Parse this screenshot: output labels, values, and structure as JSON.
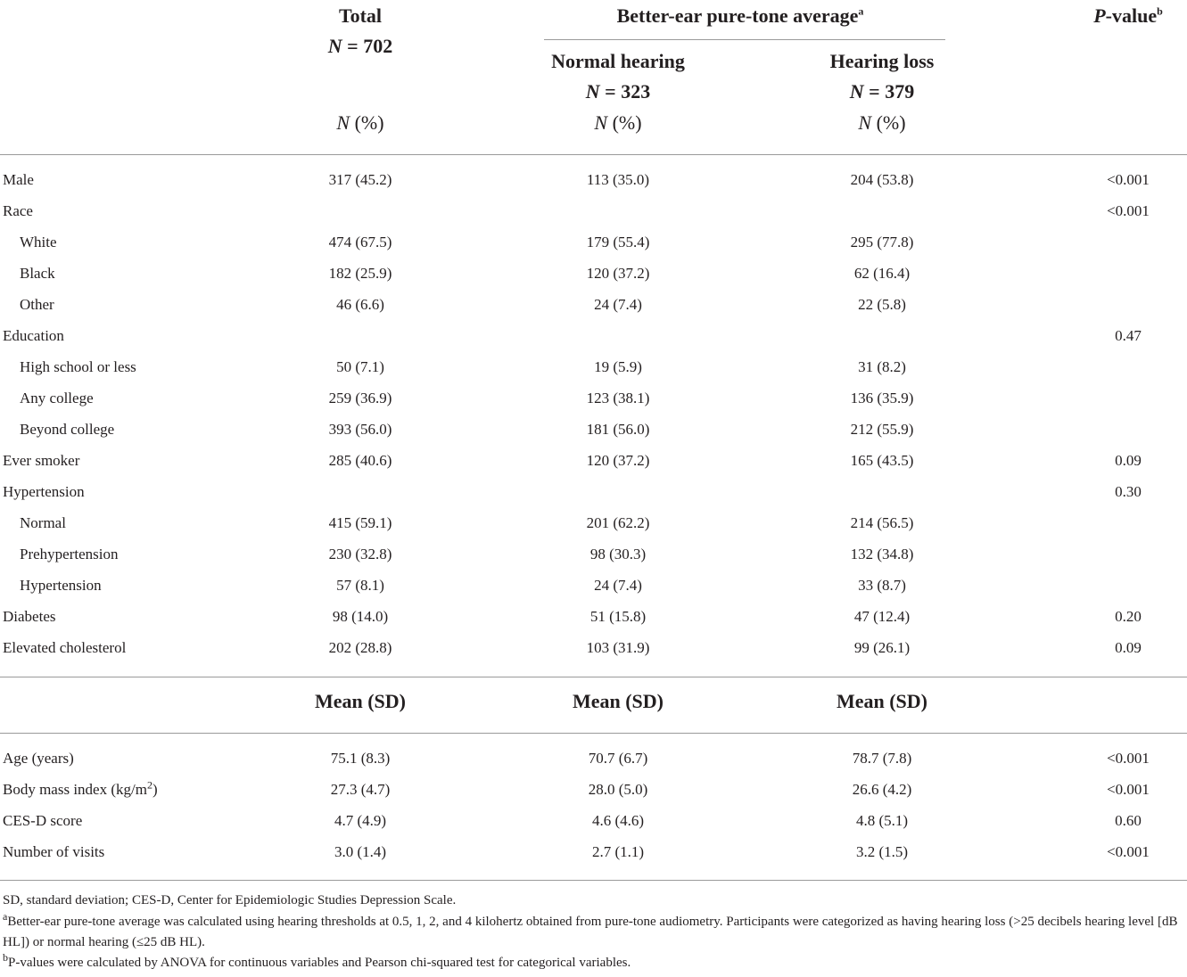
{
  "header": {
    "total_title": "Total",
    "total_n_label": "N",
    "total_n_value": " = 702",
    "group_title": "Better-ear pure-tone average",
    "group_title_sup": "a",
    "pvalue_label": "P",
    "pvalue_rest": "-value",
    "pvalue_sup": "b",
    "normal_title": "Normal hearing",
    "normal_n_label": "N",
    "normal_n_value": " = 323",
    "loss_title": "Hearing loss",
    "loss_n_label": "N",
    "loss_n_value": " = 379",
    "pct_n": "N",
    "pct_rest": " (%)",
    "mean_sd": "Mean (SD)"
  },
  "categorical_rows": [
    {
      "label": "Male",
      "indent": false,
      "total": "317 (45.2)",
      "normal": "113 (35.0)",
      "loss": "204 (53.8)",
      "p": "<0.001"
    },
    {
      "label": "Race",
      "indent": false,
      "total": "",
      "normal": "",
      "loss": "",
      "p": "<0.001"
    },
    {
      "label": "White",
      "indent": true,
      "total": "474 (67.5)",
      "normal": "179 (55.4)",
      "loss": "295 (77.8)",
      "p": ""
    },
    {
      "label": "Black",
      "indent": true,
      "total": "182 (25.9)",
      "normal": "120 (37.2)",
      "loss": "62 (16.4)",
      "p": ""
    },
    {
      "label": "Other",
      "indent": true,
      "total": "46 (6.6)",
      "normal": "24 (7.4)",
      "loss": "22 (5.8)",
      "p": ""
    },
    {
      "label": "Education",
      "indent": false,
      "total": "",
      "normal": "",
      "loss": "",
      "p": "0.47"
    },
    {
      "label": "High school or less",
      "indent": true,
      "total": "50 (7.1)",
      "normal": "19 (5.9)",
      "loss": "31 (8.2)",
      "p": ""
    },
    {
      "label": "Any college",
      "indent": true,
      "total": "259 (36.9)",
      "normal": "123 (38.1)",
      "loss": "136 (35.9)",
      "p": ""
    },
    {
      "label": "Beyond college",
      "indent": true,
      "total": "393 (56.0)",
      "normal": "181 (56.0)",
      "loss": "212 (55.9)",
      "p": ""
    },
    {
      "label": "Ever smoker",
      "indent": false,
      "total": "285 (40.6)",
      "normal": "120 (37.2)",
      "loss": "165 (43.5)",
      "p": "0.09"
    },
    {
      "label": "Hypertension",
      "indent": false,
      "total": "",
      "normal": "",
      "loss": "",
      "p": "0.30"
    },
    {
      "label": "Normal",
      "indent": true,
      "total": "415 (59.1)",
      "normal": "201 (62.2)",
      "loss": "214 (56.5)",
      "p": ""
    },
    {
      "label": "Prehypertension",
      "indent": true,
      "total": "230 (32.8)",
      "normal": "98 (30.3)",
      "loss": "132 (34.8)",
      "p": ""
    },
    {
      "label": "Hypertension",
      "indent": true,
      "total": "57 (8.1)",
      "normal": "24 (7.4)",
      "loss": "33 (8.7)",
      "p": ""
    },
    {
      "label": "Diabetes",
      "indent": false,
      "total": "98 (14.0)",
      "normal": "51 (15.8)",
      "loss": "47 (12.4)",
      "p": "0.20"
    },
    {
      "label": "Elevated cholesterol",
      "indent": false,
      "total": "202 (28.8)",
      "normal": "103 (31.9)",
      "loss": "99 (26.1)",
      "p": "0.09"
    }
  ],
  "continuous_rows": [
    {
      "label": "Age (years)",
      "label_sup": "",
      "label_after": "",
      "total": "75.1 (8.3)",
      "normal": "70.7 (6.7)",
      "loss": "78.7 (7.8)",
      "p": "<0.001"
    },
    {
      "label": "Body mass index (kg/m",
      "label_sup": "2",
      "label_after": ")",
      "total": "27.3 (4.7)",
      "normal": "28.0 (5.0)",
      "loss": "26.6 (4.2)",
      "p": "<0.001"
    },
    {
      "label": "CES-D score",
      "label_sup": "",
      "label_after": "",
      "total": "4.7 (4.9)",
      "normal": "4.6 (4.6)",
      "loss": "4.8 (5.1)",
      "p": "0.60"
    },
    {
      "label": "Number of visits",
      "label_sup": "",
      "label_after": "",
      "total": "3.0 (1.4)",
      "normal": "2.7 (1.1)",
      "loss": "3.2 (1.5)",
      "p": "<0.001"
    }
  ],
  "footnotes": {
    "abbreviations": "SD, standard deviation; CES-D, Center for Epidemiologic Studies Depression Scale.",
    "a_mark": "a",
    "a_text": "Better-ear pure-tone average was calculated using hearing thresholds at 0.5, 1, 2, and 4 kilohertz obtained from pure-tone audiometry. Participants were categorized as having hearing loss (>25 decibels hearing level [dB HL]) or normal hearing (≤25 dB HL).",
    "b_mark": "b",
    "b_text": "P-values were calculated by ANOVA for continuous variables and Pearson chi-squared test for categorical variables."
  }
}
